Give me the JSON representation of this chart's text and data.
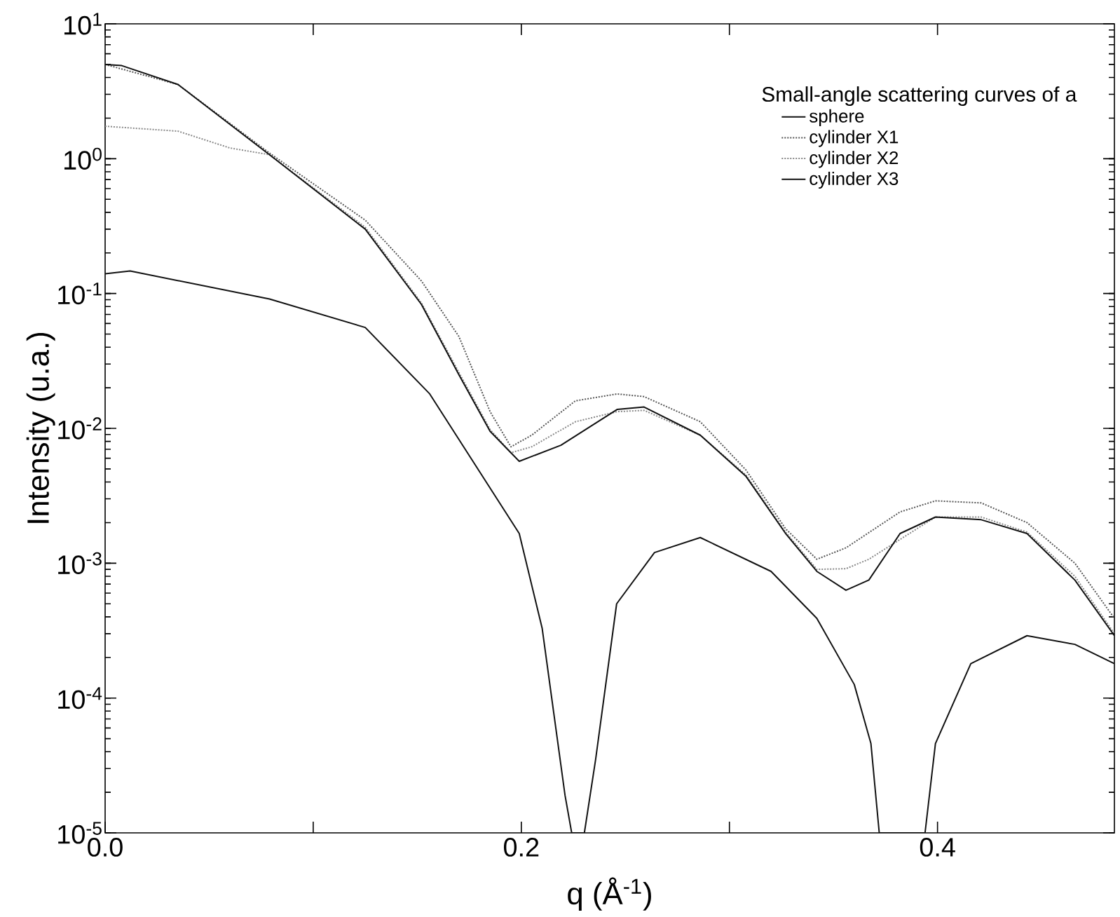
{
  "chart_data": {
    "type": "line",
    "xlabel": "q (Å$^{-1}$)",
    "ylabel": "Intensity (u.a.)",
    "legend_title": "Small-angle scattering curves of a",
    "log": "y",
    "legend": "top right",
    "grid": false,
    "marker": "none",
    "xlim": [
      0,
      0.485
    ],
    "ylim": [
      1e-05,
      10
    ],
    "xticks": [
      {
        "value": 0,
        "label": "0.0"
      },
      {
        "value": 0.1,
        "label": null
      },
      {
        "value": 0.2,
        "label": "0.2"
      },
      {
        "value": 0.3,
        "label": null
      },
      {
        "value": 0.4,
        "label": "0.4"
      }
    ],
    "yticks": [
      {
        "value": 1e-05,
        "label": "10$^{-5}$"
      },
      {
        "value": 0.0001,
        "label": "10$^{-4}$"
      },
      {
        "value": 0.001,
        "label": "10$^{-3}$"
      },
      {
        "value": 0.01,
        "label": "10$^{-2}$"
      },
      {
        "value": 0.1,
        "label": "10$^{-1}$"
      },
      {
        "value": 1,
        "label": "10$^{0}$"
      },
      {
        "value": 10,
        "label": "10$^{1}$"
      }
    ],
    "series": [
      {
        "name": "sphere",
        "color": "#111111",
        "line_style": "solid",
        "x": [
          0,
          0.012,
          0.079,
          0.125,
          0.156,
          0.199,
          0.21,
          0.221,
          0.2242,
          0.2303,
          0.2357,
          0.2458,
          0.264,
          0.286,
          0.32,
          0.342,
          0.36,
          0.368,
          0.372,
          0.394,
          0.399,
          0.416,
          0.443,
          0.466,
          0.485
        ],
        "values": [
          0.14,
          0.147,
          0.091,
          0.056,
          0.018,
          0.00166,
          0.00033,
          1.9e-05,
          1e-05,
          1e-05,
          3.5e-05,
          0.0005,
          0.0012,
          0.00155,
          0.00087,
          0.00039,
          0.000126,
          4.6e-05,
          1e-05,
          1e-05,
          4.6e-05,
          0.00018,
          0.00029,
          0.00025,
          0.00018
        ]
      },
      {
        "name": "cylinder X1",
        "color": "#555555",
        "line_style": "dotted",
        "x": [
          0,
          0.035,
          0.079,
          0.125,
          0.152,
          0.17,
          0.185,
          0.195,
          0.205,
          0.226,
          0.246,
          0.259,
          0.286,
          0.308,
          0.327,
          0.342,
          0.356,
          0.382,
          0.399,
          0.421,
          0.443,
          0.466,
          0.485
        ],
        "values": [
          5.0,
          3.55,
          1.1,
          0.35,
          0.124,
          0.048,
          0.0133,
          0.0073,
          0.0089,
          0.016,
          0.018,
          0.0172,
          0.0112,
          0.0049,
          0.0018,
          0.00107,
          0.0013,
          0.0024,
          0.0029,
          0.0028,
          0.002,
          0.001,
          0.00039
        ]
      },
      {
        "name": "cylinder X2",
        "color": "#888888",
        "line_style": "dotted",
        "x": [
          0,
          0.035,
          0.06,
          0.079,
          0.125,
          0.152,
          0.17,
          0.185,
          0.195,
          0.205,
          0.226,
          0.246,
          0.259,
          0.286,
          0.308,
          0.327,
          0.342,
          0.356,
          0.367,
          0.382,
          0.399,
          0.421,
          0.443,
          0.466,
          0.485
        ],
        "values": [
          1.74,
          1.6,
          1.2,
          1.07,
          0.31,
          0.085,
          0.026,
          0.0098,
          0.0066,
          0.0073,
          0.0112,
          0.0133,
          0.0136,
          0.0089,
          0.0045,
          0.0017,
          0.0009,
          0.00091,
          0.00107,
          0.0015,
          0.0022,
          0.0022,
          0.0017,
          0.0008,
          0.0003
        ]
      },
      {
        "name": "cylinder X3",
        "color": "#111111",
        "line_style": "solid",
        "x": [
          0,
          0.008,
          0.035,
          0.079,
          0.125,
          0.152,
          0.17,
          0.185,
          0.199,
          0.219,
          0.246,
          0.259,
          0.286,
          0.308,
          0.327,
          0.342,
          0.356,
          0.367,
          0.382,
          0.399,
          0.421,
          0.443,
          0.466,
          0.485
        ],
        "values": [
          5.0,
          4.9,
          3.55,
          1.07,
          0.3,
          0.083,
          0.025,
          0.0095,
          0.0057,
          0.0075,
          0.0138,
          0.0144,
          0.0089,
          0.0044,
          0.00166,
          0.00087,
          0.00063,
          0.00075,
          0.00166,
          0.0022,
          0.0021,
          0.00166,
          0.00075,
          0.00029
        ]
      }
    ]
  }
}
